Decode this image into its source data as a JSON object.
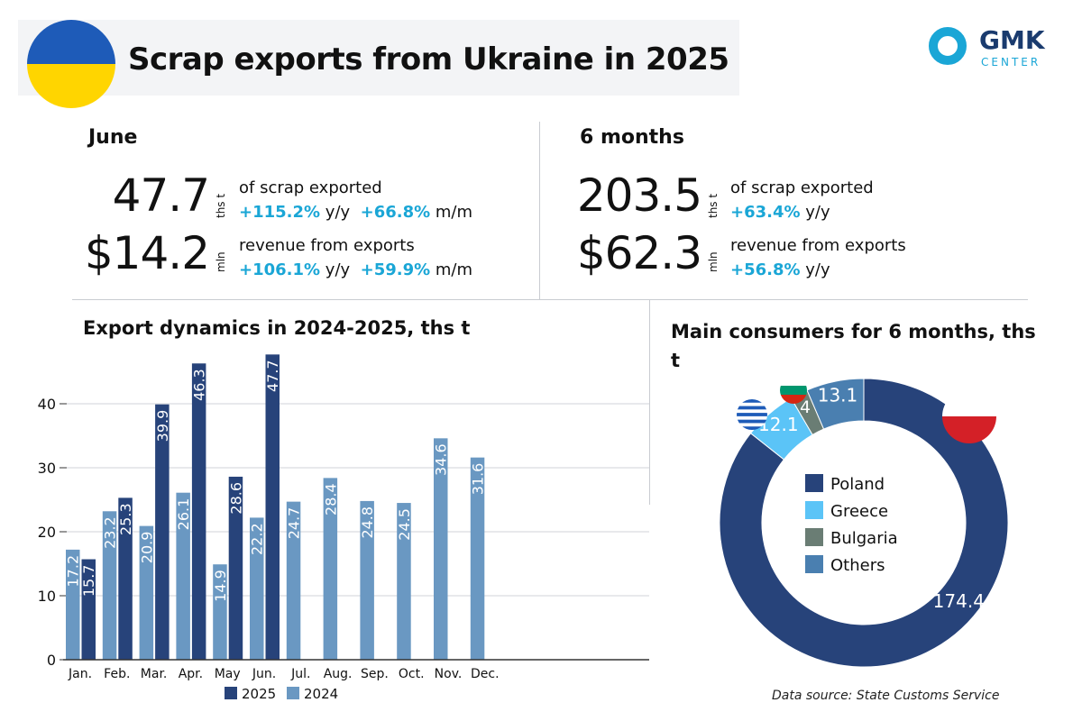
{
  "title": "Scrap exports from Ukraine in 2025",
  "logo": {
    "main": "GMK",
    "sub": "CENTER"
  },
  "colors": {
    "y2025": "#27437a",
    "y2024": "#6a98c2",
    "accent": "#1aa6d6",
    "poland": "#27437a",
    "greece": "#5bc4f7",
    "bulgaria": "#6a7d74",
    "others": "#4a7fb0"
  },
  "june": {
    "heading": "June",
    "volume": "47.7",
    "volume_unit": "ths t",
    "volume_desc": "of scrap exported",
    "volume_yy": "+115.2%",
    "yy": "y/y",
    "volume_mm": "+66.8%",
    "mm": "m/m",
    "revenue": "$14.2",
    "revenue_unit": "mln",
    "revenue_desc": "revenue from exports",
    "revenue_yy": "+106.1%",
    "revenue_mm": "+59.9%"
  },
  "six_months": {
    "heading": "6 months",
    "volume": "203.5",
    "volume_unit": "ths t",
    "volume_desc": "of scrap exported",
    "volume_yy": "+63.4%",
    "yy": "y/y",
    "revenue": "$62.3",
    "revenue_unit": "mln",
    "revenue_desc": "revenue from exports",
    "revenue_yy": "+56.8%"
  },
  "chart_data": [
    {
      "type": "bar",
      "title": "Export dynamics in 2024-2025, ths t",
      "categories": [
        "Jan.",
        "Feb.",
        "Mar.",
        "Apr.",
        "May",
        "Jun.",
        "Jul.",
        "Aug.",
        "Sep.",
        "Oct.",
        "Nov.",
        "Dec."
      ],
      "series": [
        {
          "name": "2024",
          "values": [
            17.2,
            23.2,
            20.9,
            26.1,
            14.9,
            22.2,
            24.7,
            28.4,
            24.8,
            24.5,
            34.6,
            31.6
          ]
        },
        {
          "name": "2025",
          "values": [
            15.7,
            25.3,
            39.9,
            46.3,
            28.6,
            47.7,
            null,
            null,
            null,
            null,
            null,
            null
          ]
        }
      ],
      "yticks": [
        0,
        10,
        20,
        30,
        40
      ],
      "ylim": [
        0,
        48
      ],
      "grid": true,
      "legend": "bottom"
    },
    {
      "type": "pie",
      "donut": true,
      "title": "Main consumers for 6 months, ths t",
      "labels": [
        "Poland",
        "Greece",
        "Bulgaria",
        "Others"
      ],
      "values": [
        174.4,
        12.1,
        4,
        13.1
      ],
      "legend": "center"
    }
  ],
  "source": "Data source: State Customs Service"
}
